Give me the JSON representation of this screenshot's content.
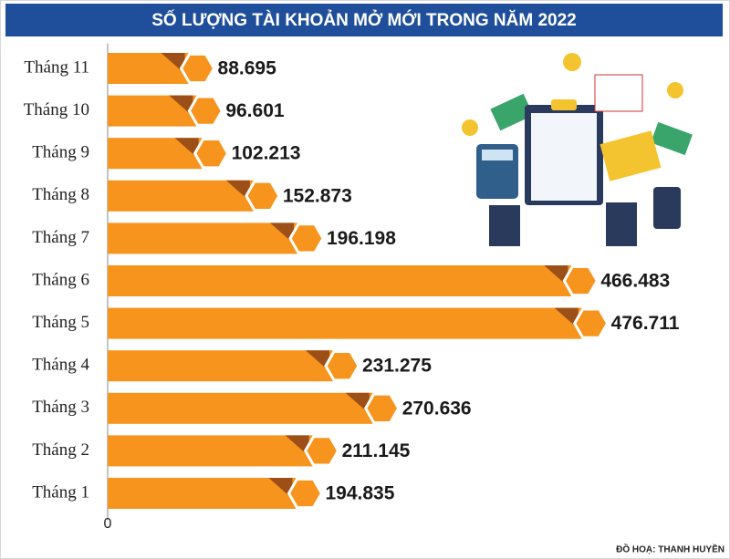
{
  "chart_data": {
    "type": "bar",
    "orientation": "horizontal",
    "title": "SỐ LƯỢNG TÀI KHOẢN MỞ MỚI TRONG NĂM 2022",
    "credit": "ĐỒ HOẠ: THANH HUYỀN",
    "categories": [
      "Tháng 11",
      "Tháng 10",
      "Tháng 9",
      "Tháng 8",
      "Tháng 7",
      "Tháng 6",
      "Tháng 5",
      "Tháng 4",
      "Tháng 3",
      "Tháng 2",
      "Tháng 1"
    ],
    "values": [
      88695,
      96601,
      102213,
      152873,
      196198,
      466483,
      476711,
      231275,
      270636,
      211145,
      194835
    ],
    "value_labels": [
      "88.695",
      "96.601",
      "102.213",
      "152.873",
      "196.198",
      "466.483",
      "476.711",
      "231.275",
      "270.636",
      "211.145",
      "194.835"
    ],
    "color": "#f7941d",
    "xlim": [
      0,
      540000
    ],
    "xticks": [
      0
    ]
  }
}
